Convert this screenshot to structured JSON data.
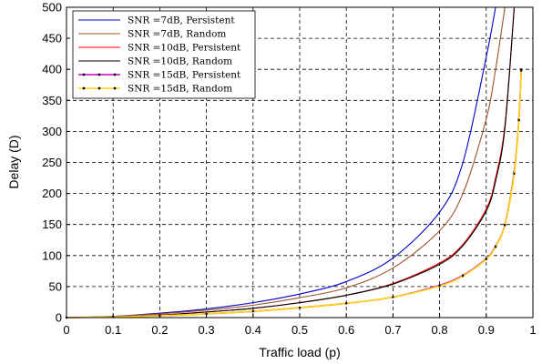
{
  "chart_data": {
    "type": "line",
    "xlabel": "Traffic load (p)",
    "ylabel": "Delay (D)",
    "xlim": [
      0,
      1
    ],
    "ylim": [
      0,
      500
    ],
    "xticks": [
      "0",
      "0.1",
      "0.2",
      "0.3",
      "0.4",
      "0.5",
      "0.6",
      "0.7",
      "0.8",
      "0.9",
      "1"
    ],
    "yticks": [
      "0",
      "50",
      "100",
      "150",
      "200",
      "250",
      "300",
      "350",
      "400",
      "450",
      "500"
    ],
    "grid": true,
    "legend_position": "top-left",
    "x": [
      0,
      0.1,
      0.2,
      0.3,
      0.4,
      0.5,
      0.6,
      0.7,
      0.8,
      0.85,
      0.9,
      0.92,
      0.94,
      0.96,
      0.97,
      0.975
    ],
    "series": [
      {
        "name": "SNR =7dB, Persistent",
        "color": "#0000cc",
        "marker": "none",
        "values": [
          0,
          2,
          7,
          14,
          24,
          38,
          58,
          96,
          170,
          250,
          420,
          500,
          null,
          null,
          null,
          null
        ]
      },
      {
        "name": "SNR =7dB, Random",
        "color": "#a0522d",
        "marker": "none",
        "values": [
          0,
          2,
          6,
          12,
          20,
          32,
          48,
          80,
          140,
          200,
          320,
          400,
          500,
          null,
          null,
          null
        ]
      },
      {
        "name": "SNR =10dB, Persistent",
        "color": "#ff0000",
        "marker": "none",
        "values": [
          0,
          1,
          4,
          9,
          15,
          24,
          36,
          55,
          88,
          118,
          175,
          225,
          310,
          500,
          null,
          null
        ]
      },
      {
        "name": "SNR =10dB, Random",
        "color": "#000000",
        "marker": "none",
        "values": [
          0,
          1,
          4,
          9,
          15,
          24,
          36,
          54,
          86,
          116,
          172,
          220,
          305,
          500,
          null,
          null
        ]
      },
      {
        "name": "SNR =15dB, Persistent",
        "color": "#cc00cc",
        "marker": "dot",
        "values": [
          0,
          1,
          3,
          6,
          10,
          16,
          23,
          33,
          52,
          68,
          95,
          115,
          150,
          235,
          320,
          400
        ]
      },
      {
        "name": "SNR =15dB, Random",
        "color": "#ffd700",
        "marker": "dot",
        "values": [
          0,
          1,
          3,
          6,
          10,
          16,
          23,
          33,
          51,
          67,
          94,
          114,
          149,
          232,
          318,
          398
        ]
      }
    ]
  }
}
